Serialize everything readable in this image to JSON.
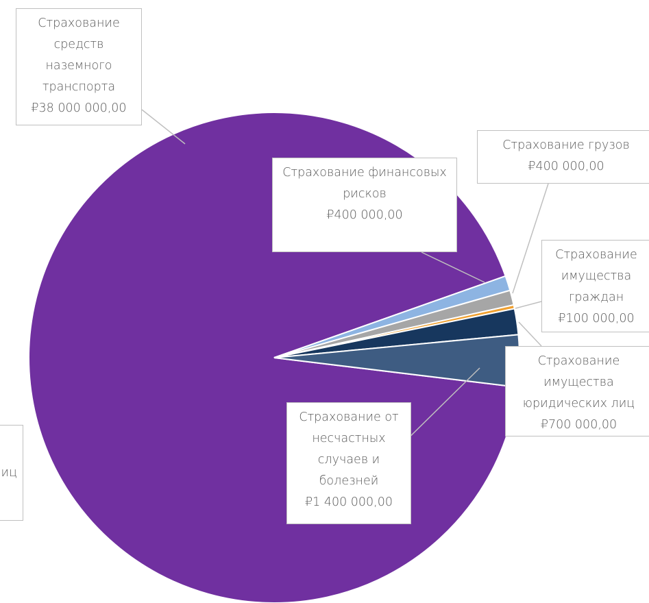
{
  "chart_data": {
    "type": "pie",
    "categories": [
      "Страхование средств наземного транспорта",
      "Страхование финансовых рисков",
      "Страхование грузов",
      "Страхование имущества граждан",
      "Страхование имущества юридических лиц",
      "Страхование от несчастных случаев и болезней"
    ],
    "values": [
      38000000,
      400000,
      400000,
      100000,
      700000,
      1400000
    ],
    "value_labels": [
      "₽38 000 000,00",
      "₽400 000,00",
      "₽400 000,00",
      "₽100 000,00",
      "₽700 000,00",
      "₽1 400 000,00"
    ],
    "colors": [
      "#7030a0",
      "#8db4e2",
      "#a6a6a6",
      "#f0a030",
      "#17375e",
      "#3e5c82"
    ],
    "annotations": [
      "иц"
    ]
  }
}
